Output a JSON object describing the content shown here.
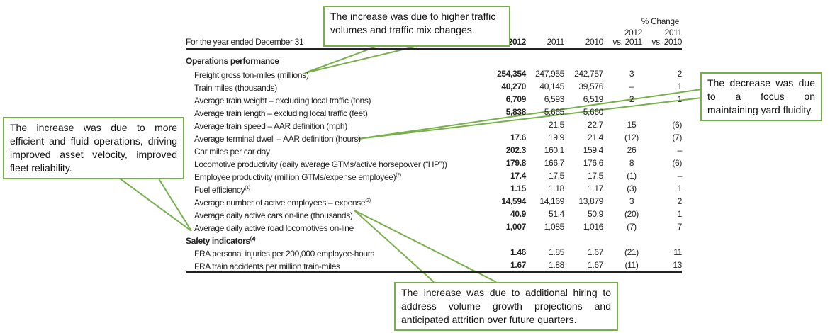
{
  "header": {
    "period": "For the year ended December 31",
    "pct_change": "% Change",
    "cols": [
      "2012",
      "2011",
      "2010"
    ],
    "pct_cols": [
      [
        "2012",
        "vs. 2011"
      ],
      [
        "2011",
        "vs. 2010"
      ]
    ]
  },
  "sections": [
    {
      "title": "Operations performance",
      "rows": [
        [
          "Freight gross ton-miles (millions)",
          "",
          "254,354",
          "247,955",
          "242,757",
          "3",
          "2"
        ],
        [
          "Train miles (thousands)",
          "",
          "40,270",
          "40,145",
          "39,576",
          "–",
          "1"
        ],
        [
          "Average train weight – excluding local traffic (tons)",
          "",
          "6,709",
          "6,593",
          "6,519",
          "2",
          "1"
        ],
        [
          "Average train length – excluding local traffic (feet)",
          "",
          "5,838",
          "5,665",
          "5,660",
          "",
          ""
        ],
        [
          "Average train speed – AAR definition (mph)",
          "",
          "",
          "21.5",
          "22.7",
          "15",
          "(6)"
        ],
        [
          "Average terminal dwell – AAR definition (hours)",
          "",
          "17.6",
          "19.9",
          "21.4",
          "(12)",
          "(7)"
        ],
        [
          "Car miles per car day",
          "",
          "202.3",
          "160.1",
          "159.4",
          "26",
          "–"
        ],
        [
          "Locomotive productivity (daily average GTMs/active horsepower (“HP”))",
          "",
          "179.8",
          "166.7",
          "176.6",
          "8",
          "(6)"
        ],
        [
          "Employee productivity (million GTMs/expense employee)",
          "(2)",
          "17.4",
          "17.5",
          "17.5",
          "(1)",
          "–"
        ],
        [
          "Fuel efficiency",
          "(1)",
          "1.15",
          "1.18",
          "1.17",
          "(3)",
          "1"
        ],
        [
          "Average number of active employees – expense",
          "(2)",
          "14,594",
          "14,169",
          "13,879",
          "3",
          "2"
        ],
        [
          "Average daily active cars on-line (thousands)",
          "",
          "40.9",
          "51.4",
          "50.9",
          "(20)",
          "1"
        ],
        [
          "Average daily active road locomotives on-line",
          "",
          "1,007",
          "1,085",
          "1,016",
          "(7)",
          "7"
        ]
      ]
    },
    {
      "title": "Safety indicators",
      "title_sup": "(3)",
      "rows": [
        [
          "FRA personal injuries per 200,000 employee-hours",
          "",
          "1.46",
          "1.85",
          "1.67",
          "(21)",
          "11"
        ],
        [
          "FRA train accidents per million train-miles",
          "",
          "1.67",
          "1.88",
          "1.67",
          "(11)",
          "13"
        ]
      ]
    }
  ],
  "callouts": [
    "The increase was due to higher traffic volumes and traffic mix changes.",
    "The decrease was due to a focus on maintaining yard fluidity.",
    "The increase was due to more efficient and fluid operations, driving improved asset velocity, improved fleet reliability.",
    "The increase was due to additional hiring to address volume growth projections and anticipated attrition over future quarters."
  ],
  "colors": {
    "callout_border": "#77b04b"
  }
}
